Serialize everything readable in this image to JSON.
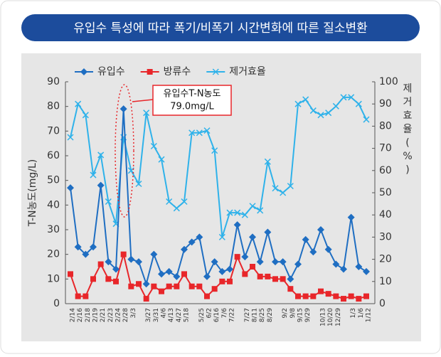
{
  "chart_data": {
    "type": "line",
    "title": "유입수 특성에 따라 폭기/비폭기 시간변화에 따른 질소변환",
    "y_label": "T-N농도(mg/L)",
    "y2_label": "제거효율(%)",
    "annotation": [
      "유입수T-N농도",
      "79.0mg/L"
    ],
    "categories": [
      "2/14",
      "2/16",
      "2/18",
      "2/19",
      "2/21",
      "2/23",
      "2/24",
      "2/28",
      "3/3",
      null,
      "3/27",
      "3/31",
      "4/6",
      "4/13",
      "4/27",
      "5/18",
      null,
      "5/25",
      "6/2",
      "6/16",
      "7/6",
      "7/22",
      null,
      "7/27",
      "8/11",
      "8/25",
      "8/29",
      null,
      "9/2",
      "9/8",
      "9/15",
      "9/29",
      null,
      "10/13",
      "10/20",
      "12/29",
      null,
      "1/3",
      "1/6",
      "1/12"
    ],
    "series": [
      {
        "name": "유입수",
        "color": "#1f6ec2",
        "marker": "diamond",
        "axis": "y",
        "values": [
          47,
          23,
          20,
          23,
          48,
          17,
          14,
          79,
          18,
          17,
          8,
          20,
          12,
          13,
          11,
          22,
          25,
          27,
          11,
          17,
          13,
          14,
          32,
          19,
          27,
          17,
          29,
          17,
          17,
          10,
          16,
          26,
          21,
          30,
          22,
          16,
          14,
          35,
          15,
          13
        ]
      },
      {
        "name": "방류수",
        "color": "#e8262a",
        "marker": "square",
        "axis": "y",
        "values": [
          12,
          3,
          3,
          10,
          16,
          10,
          9,
          20,
          7,
          8,
          2,
          7,
          5,
          7,
          7,
          12,
          7,
          7,
          3,
          6,
          9,
          9,
          19,
          12,
          15,
          11,
          11,
          10,
          10,
          6,
          3,
          3,
          3,
          5,
          4,
          3,
          2,
          3,
          2,
          3
        ]
      },
      {
        "name": "제거효율",
        "color": "#2fb2ea",
        "marker": "x",
        "axis": "y2",
        "values": [
          75,
          90,
          85,
          58,
          67,
          46,
          36,
          75,
          60,
          54,
          86,
          71,
          65,
          46,
          43,
          46,
          77,
          77,
          78,
          69,
          30,
          41,
          41,
          40,
          44,
          42,
          64,
          52,
          50,
          53,
          90,
          92,
          87,
          85,
          86,
          89,
          93,
          93,
          90,
          83
        ]
      }
    ],
    "ylim": [
      0,
      90
    ],
    "yticks": [
      0,
      10,
      20,
      30,
      40,
      50,
      60,
      70,
      80,
      90
    ],
    "y2lim": [
      0,
      100
    ],
    "y2ticks": [
      0,
      10,
      20,
      30,
      40,
      50,
      60,
      70,
      80,
      90,
      100
    ],
    "grid": false,
    "legend": "top-left"
  }
}
